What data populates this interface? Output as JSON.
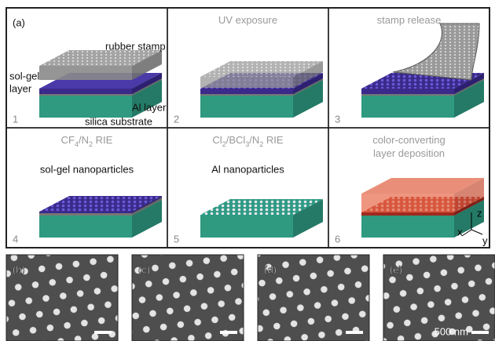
{
  "figure_label": "(a)",
  "panels": [
    {
      "number": "1",
      "labels": [
        "rubber stamp",
        "sol-gel",
        "layer",
        "Al layer",
        "silica substrate"
      ]
    },
    {
      "number": "2",
      "title_lines": [
        [
          {
            "text": "UV exposure"
          }
        ]
      ]
    },
    {
      "number": "3",
      "title_lines": [
        [
          {
            "text": "stamp release"
          }
        ]
      ]
    },
    {
      "number": "4",
      "title_lines": [
        [
          {
            "text": "CF"
          },
          {
            "text": "4",
            "sub": true
          },
          {
            "text": "/N"
          },
          {
            "text": "2",
            "sub": true
          },
          {
            "text": " RIE"
          }
        ]
      ],
      "caption": "sol-gel nanoparticles"
    },
    {
      "number": "5",
      "title_lines": [
        [
          {
            "text": "Cl"
          },
          {
            "text": "2",
            "sub": true
          },
          {
            "text": "/BCl"
          },
          {
            "text": "3",
            "sub": true
          },
          {
            "text": "/N"
          },
          {
            "text": "2",
            "sub": true
          },
          {
            "text": " RIE"
          }
        ]
      ],
      "caption": "Al nanoparticles"
    },
    {
      "number": "6",
      "title_lines": [
        [
          {
            "text": "color-converting"
          }
        ],
        [
          {
            "text": "layer deposition"
          }
        ]
      ],
      "axes": [
        "z",
        "x",
        "y"
      ]
    }
  ],
  "sem_panels": [
    {
      "label": "(b)"
    },
    {
      "label": "(c)"
    },
    {
      "label": "(d)"
    },
    {
      "label": "(e)",
      "scale_text": "500 nm"
    }
  ]
}
